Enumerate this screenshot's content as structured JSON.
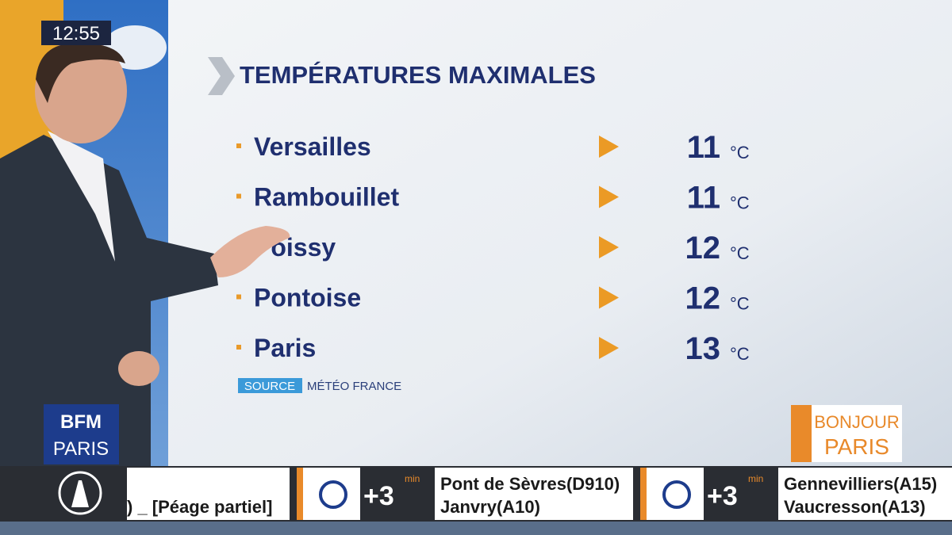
{
  "clock": "12:55",
  "title": "TEMPÉRATURES MAXIMALES",
  "rows": [
    {
      "city": "Versailles",
      "temp": 11,
      "unit": "°C"
    },
    {
      "city": "Rambouillet",
      "temp": 11,
      "unit": "°C"
    },
    {
      "city": "Poissy",
      "temp": 12,
      "unit": "°C"
    },
    {
      "city": "Pontoise",
      "temp": 12,
      "unit": "°C"
    },
    {
      "city": "Paris",
      "temp": 13,
      "unit": "°C"
    }
  ],
  "source": {
    "label": "SOURCE",
    "name": "MÉTÉO FRANCE"
  },
  "channel_logo": {
    "top": "BFM",
    "bottom": "PARIS"
  },
  "show_logo": {
    "top": "BONJOUR",
    "bottom": "PARIS"
  },
  "ticker": {
    "partial": ") _ [Péage partiel]",
    "items": [
      {
        "delay": "+3",
        "unit": "min",
        "line1": "Pont de Sèvres(D910)",
        "line2": "Janvry(A10)"
      },
      {
        "delay": "+3",
        "unit": "min",
        "line1": "Gennevilliers(A15)",
        "line2": "Vaucresson(A13)"
      }
    ]
  }
}
